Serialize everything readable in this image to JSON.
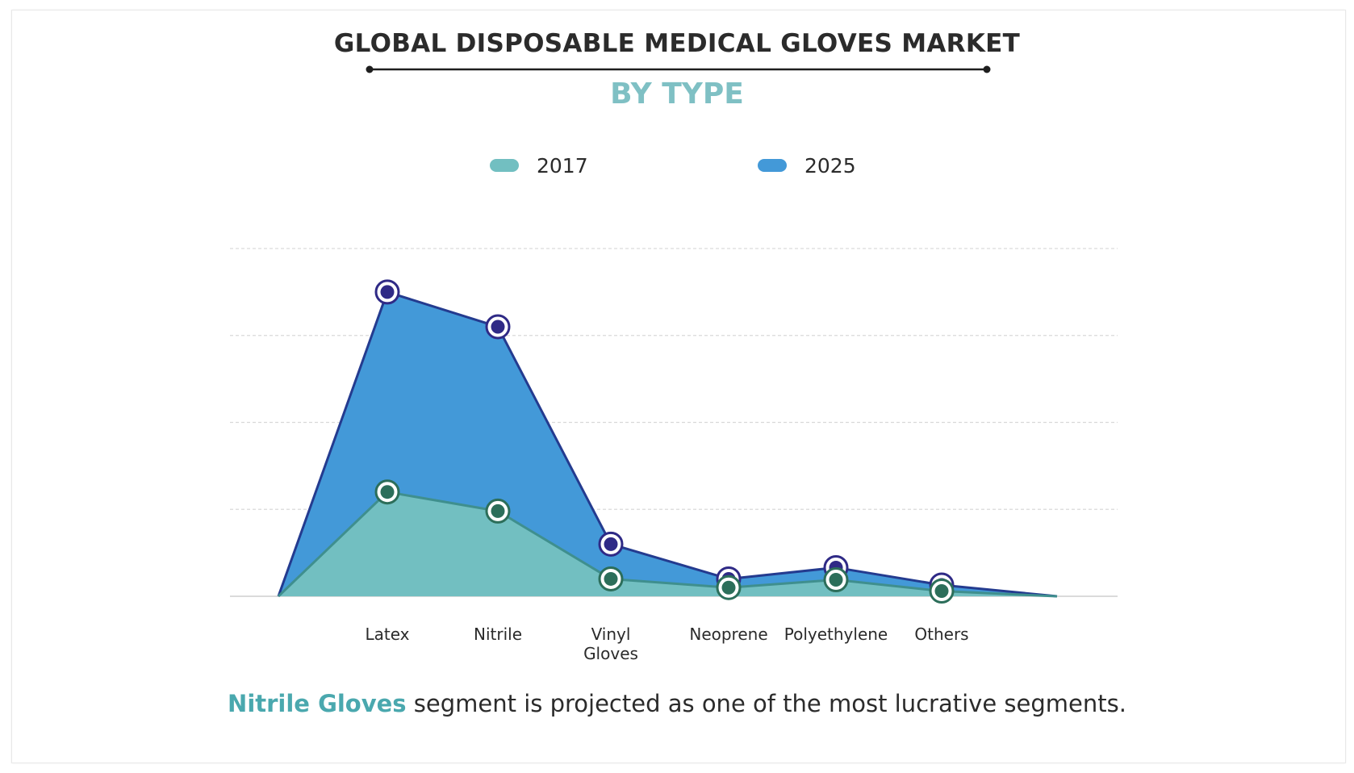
{
  "chart_data": {
    "type": "area",
    "title": "GLOBAL DISPOSABLE MEDICAL GLOVES MARKET",
    "subtitle": "BY TYPE",
    "categories": [
      "Latex",
      "Nitrile",
      "Vinyl Gloves",
      "Neoprene",
      "Polyethylene",
      "Others"
    ],
    "series": [
      {
        "name": "2017",
        "values": [
          1.2,
          0.98,
          0.2,
          0.1,
          0.19,
          0.06
        ],
        "color": "#72bfc1"
      },
      {
        "name": "2025",
        "values": [
          3.5,
          3.1,
          0.6,
          0.2,
          0.33,
          0.13
        ],
        "color": "#4399d8"
      }
    ],
    "ylim": [
      0,
      4
    ],
    "grid": true,
    "legend_position": "top",
    "xlabel": "",
    "ylabel": ""
  },
  "colors": {
    "series_2017_fill": "#72bfc1",
    "series_2017_line": "#3f8f8e",
    "series_2025_fill": "#4399d8",
    "series_2025_line": "#243b8f",
    "marker_2017": "#2c6e5a",
    "marker_2025": "#2f2a86",
    "accent_text": "#4aa8ae"
  },
  "footer": {
    "highlight": "Nitrile Gloves",
    "text": " segment is projected as one of the most lucrative segments."
  }
}
